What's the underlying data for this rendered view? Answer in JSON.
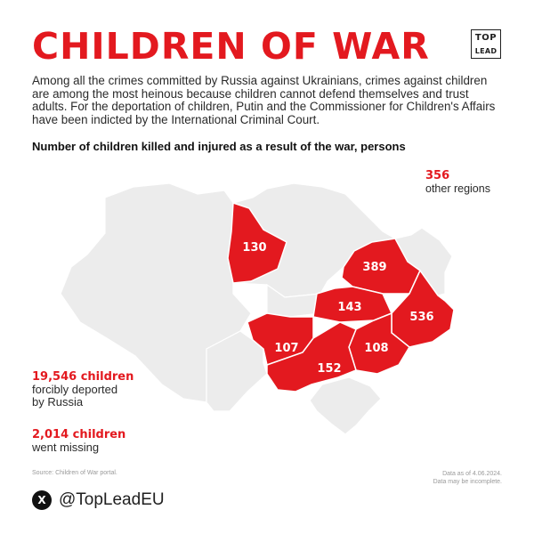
{
  "header": {
    "title": "CHILDREN OF WAR",
    "logo_top": "TOP",
    "logo_bottom": "LEAD"
  },
  "intro": "Among all the crimes committed by Russia against Ukrainians, crimes against children are among the most heinous because children cannot defend themselves and trust adults. For the deportation of children, Putin and the Commissioner for Children's Affairs have been indicted by the International Criminal Court.",
  "subtitle": "Number of children killed and injured as a result of the war, persons",
  "map": {
    "regions": [
      {
        "name": "kyiv",
        "value": "130"
      },
      {
        "name": "kharkiv",
        "value": "389"
      },
      {
        "name": "dnipropetrovsk",
        "value": "143"
      },
      {
        "name": "donetsk",
        "value": "536"
      },
      {
        "name": "mykolaiv",
        "value": "107"
      },
      {
        "name": "zaporizhzhia",
        "value": "108"
      },
      {
        "name": "kherson",
        "value": "152"
      }
    ],
    "other": {
      "value": "356",
      "label": "other regions"
    },
    "colors": {
      "highlight": "#e3191f",
      "base": "#ececec",
      "border": "#ffffff"
    }
  },
  "stats": {
    "deported": {
      "value": "19,546 children",
      "label_line1": "forcibly deported",
      "label_line2": "by Russia"
    },
    "missing": {
      "value": "2,014 children",
      "label": "went missing"
    }
  },
  "footer": {
    "source": "Source: Children of War portal.",
    "date_line1": "Data as of 4.06.2024.",
    "date_line2": "Data may be incomplete.",
    "social_icon": "x-icon",
    "social_glyph": "X",
    "handle": "@TopLeadEU"
  }
}
